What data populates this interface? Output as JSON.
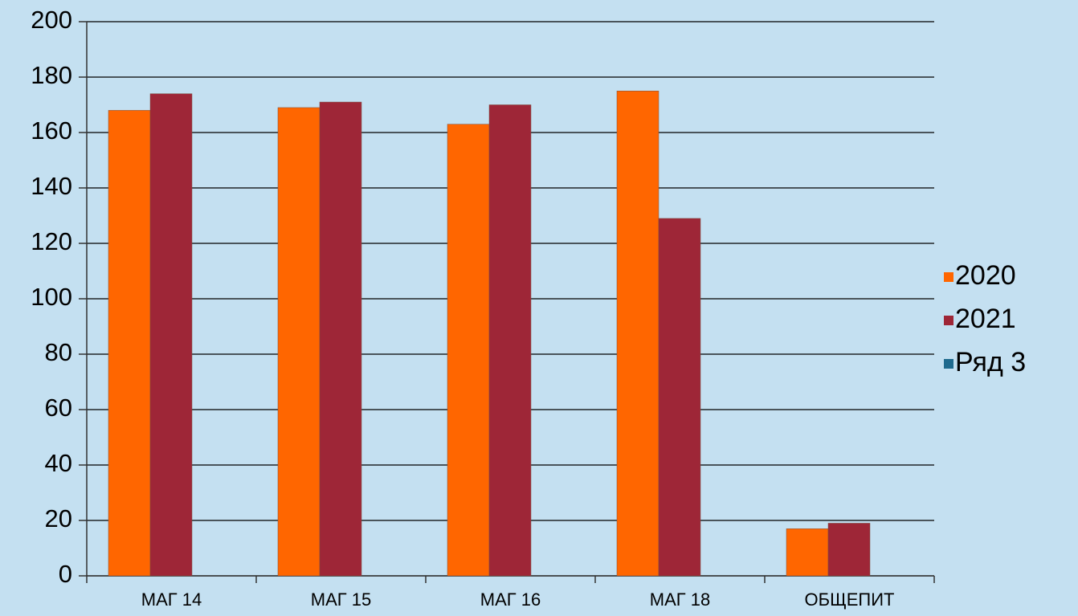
{
  "chart_data": {
    "type": "bar",
    "categories": [
      "МАГ 14",
      "МАГ 15",
      "МАГ 16",
      "МАГ 18",
      "ОБЩЕПИТ"
    ],
    "series": [
      {
        "name": "2020",
        "color": "#ff6600",
        "values": [
          168,
          169,
          163,
          175,
          17
        ]
      },
      {
        "name": "2021",
        "color": "#9e2637",
        "values": [
          174,
          171,
          170,
          129,
          19
        ]
      },
      {
        "name": "Ряд 3",
        "color": "#1f6a8e",
        "values": [
          null,
          null,
          null,
          null,
          null
        ]
      }
    ],
    "ylim": [
      0,
      200
    ],
    "yticks": [
      0,
      20,
      40,
      60,
      80,
      100,
      120,
      140,
      160,
      180,
      200
    ],
    "grid": true,
    "legend": "right"
  }
}
